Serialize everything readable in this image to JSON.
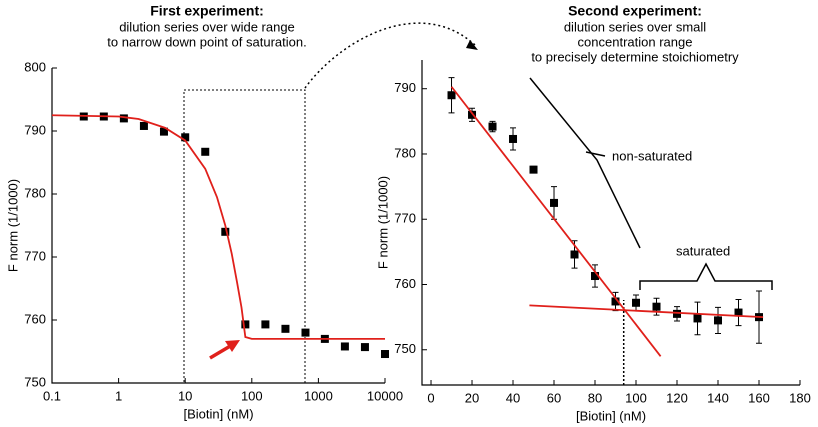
{
  "chart_data": [
    {
      "type": "scatter",
      "title": "First experiment:",
      "subtitle": [
        "dilution series over wide range",
        "to narrow down point of saturation."
      ],
      "x_label": "[Biotin] (nM)",
      "y_label": "F norm (1/1000)",
      "xscale": "log",
      "xlim": [
        0.1,
        10000
      ],
      "xticks": [
        0.1,
        1,
        10,
        100,
        1000,
        10000
      ],
      "ylim": [
        750,
        800
      ],
      "yticks": [
        750,
        760,
        770,
        780,
        790,
        800
      ],
      "series": [
        {
          "style": "markers",
          "color": "#000000",
          "x": [
            0.3,
            0.6,
            1.2,
            2.4,
            4.8,
            10,
            20,
            40,
            80,
            160,
            320,
            640,
            1250,
            2500,
            5000,
            10000
          ],
          "values": [
            792.3,
            792.3,
            792,
            790.8,
            789.9,
            789,
            786.7,
            774,
            759.3,
            759.3,
            758.6,
            758,
            757,
            755.8,
            755.7,
            754.6
          ]
        },
        {
          "style": "line",
          "color": "#e0201b",
          "x": [
            0.1,
            1,
            2,
            5,
            10,
            20,
            30,
            40,
            50,
            60,
            70,
            80,
            100,
            1000,
            10000
          ],
          "values": [
            792.5,
            792.3,
            791.9,
            790.5,
            788.5,
            784,
            779.5,
            775,
            770.5,
            766,
            762,
            757.3,
            757,
            757,
            757
          ]
        }
      ]
    },
    {
      "type": "scatter",
      "title": "Second experiment:",
      "subtitle": [
        "dilution series over small",
        "concentration range",
        "to precisely determine stoichiometry"
      ],
      "x_label": "[Biotin] (nM)",
      "y_label": "F norm (1/1000)",
      "xlim": [
        -4.4,
        180
      ],
      "xticks": [
        0,
        20,
        40,
        60,
        80,
        100,
        120,
        140,
        160,
        180
      ],
      "ylim": [
        744.6,
        794.4
      ],
      "yticks": [
        750,
        760,
        770,
        780,
        790
      ],
      "annotations": [
        "non-saturated",
        "saturated"
      ],
      "vlines": [
        94
      ],
      "series": [
        {
          "style": "markers",
          "color": "#000000",
          "x": [
            10,
            20,
            30,
            40,
            50,
            60,
            70,
            80,
            90,
            100,
            110,
            120,
            130,
            140,
            150,
            160
          ],
          "values": [
            789,
            786,
            784.2,
            782.3,
            777.6,
            772.5,
            764.6,
            761.3,
            757.4,
            757.2,
            756.6,
            755.5,
            754.8,
            754.5,
            755.7,
            755
          ],
          "errors": [
            2.7,
            1,
            0.8,
            1.7,
            0.5,
            2.5,
            2.1,
            1.7,
            1.4,
            1.2,
            1.3,
            1.1,
            2.5,
            2,
            2,
            4
          ]
        },
        {
          "style": "line",
          "color": "#e0201b",
          "x": [
            10,
            112
          ],
          "values": [
            790.3,
            749
          ]
        },
        {
          "style": "line",
          "color": "#e0201b",
          "x": [
            48,
            162
          ],
          "values": [
            756.8,
            755
          ]
        }
      ]
    }
  ]
}
